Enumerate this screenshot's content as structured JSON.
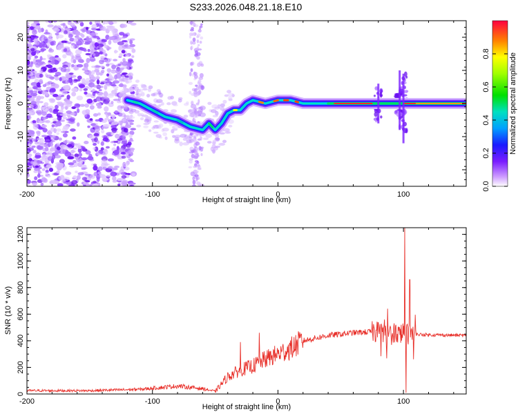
{
  "title": "S233.2026.048.21.18.E10",
  "chart_data": [
    {
      "type": "heatmap",
      "xlabel": "Height of straight line (km)",
      "ylabel": "Frequency (Hz)",
      "xlim": [
        -200,
        150
      ],
      "ylim": [
        -25,
        25
      ],
      "x_ticks": [
        -200,
        -100,
        0,
        100
      ],
      "y_ticks": [
        -20,
        -10,
        0,
        10,
        20
      ],
      "colorbar": {
        "label": "Normalized spectral amplitude",
        "range": [
          0,
          1
        ],
        "ticks": [
          0,
          0.2,
          0.4,
          0.6,
          0.8
        ]
      },
      "ridge": [
        {
          "x": -120,
          "y": 1
        },
        {
          "x": -110,
          "y": 0
        },
        {
          "x": -100,
          "y": -2
        },
        {
          "x": -90,
          "y": -4
        },
        {
          "x": -80,
          "y": -5
        },
        {
          "x": -70,
          "y": -7
        },
        {
          "x": -60,
          "y": -8
        },
        {
          "x": -55,
          "y": -6
        },
        {
          "x": -50,
          "y": -8
        },
        {
          "x": -45,
          "y": -6
        },
        {
          "x": -40,
          "y": -3
        },
        {
          "x": -35,
          "y": -2
        },
        {
          "x": -30,
          "y": -2
        },
        {
          "x": -25,
          "y": 0
        },
        {
          "x": -20,
          "y": 1
        },
        {
          "x": -10,
          "y": 0
        },
        {
          "x": 0,
          "y": 1
        },
        {
          "x": 10,
          "y": 1
        },
        {
          "x": 20,
          "y": 0
        },
        {
          "x": 40,
          "y": 0
        },
        {
          "x": 60,
          "y": 0
        },
        {
          "x": 80,
          "y": 0
        },
        {
          "x": 95,
          "y": 0
        },
        {
          "x": 100,
          "y": 0
        },
        {
          "x": 150,
          "y": 0
        }
      ]
    },
    {
      "type": "line",
      "xlabel": "Height of straight line (km)",
      "ylabel": "SNR (10 * v/v)",
      "xlim": [
        -200,
        150
      ],
      "ylim": [
        0,
        1250
      ],
      "x_ticks": [
        -200,
        -100,
        0,
        100
      ],
      "y_ticks": [
        0,
        200,
        400,
        600,
        800,
        1000,
        1200
      ],
      "color": "#e8302a",
      "envelope": [
        {
          "x": -200,
          "y": 25
        },
        {
          "x": -150,
          "y": 25
        },
        {
          "x": -110,
          "y": 35
        },
        {
          "x": -80,
          "y": 60
        },
        {
          "x": -60,
          "y": 40
        },
        {
          "x": -50,
          "y": 20
        },
        {
          "x": -40,
          "y": 130
        },
        {
          "x": -30,
          "y": 180
        },
        {
          "x": -20,
          "y": 210
        },
        {
          "x": -10,
          "y": 260
        },
        {
          "x": 0,
          "y": 300
        },
        {
          "x": 10,
          "y": 340
        },
        {
          "x": 20,
          "y": 400
        },
        {
          "x": 40,
          "y": 440
        },
        {
          "x": 60,
          "y": 460
        },
        {
          "x": 80,
          "y": 470
        },
        {
          "x": 95,
          "y": 460
        },
        {
          "x": 105,
          "y": 450
        },
        {
          "x": 120,
          "y": 445
        },
        {
          "x": 150,
          "y": 440
        }
      ],
      "peaks": [
        {
          "x": -30,
          "y": 390
        },
        {
          "x": -15,
          "y": 460
        },
        {
          "x": 85,
          "y": 560
        },
        {
          "x": 101,
          "y": 1250
        },
        {
          "x": 105,
          "y": 860
        }
      ]
    }
  ]
}
